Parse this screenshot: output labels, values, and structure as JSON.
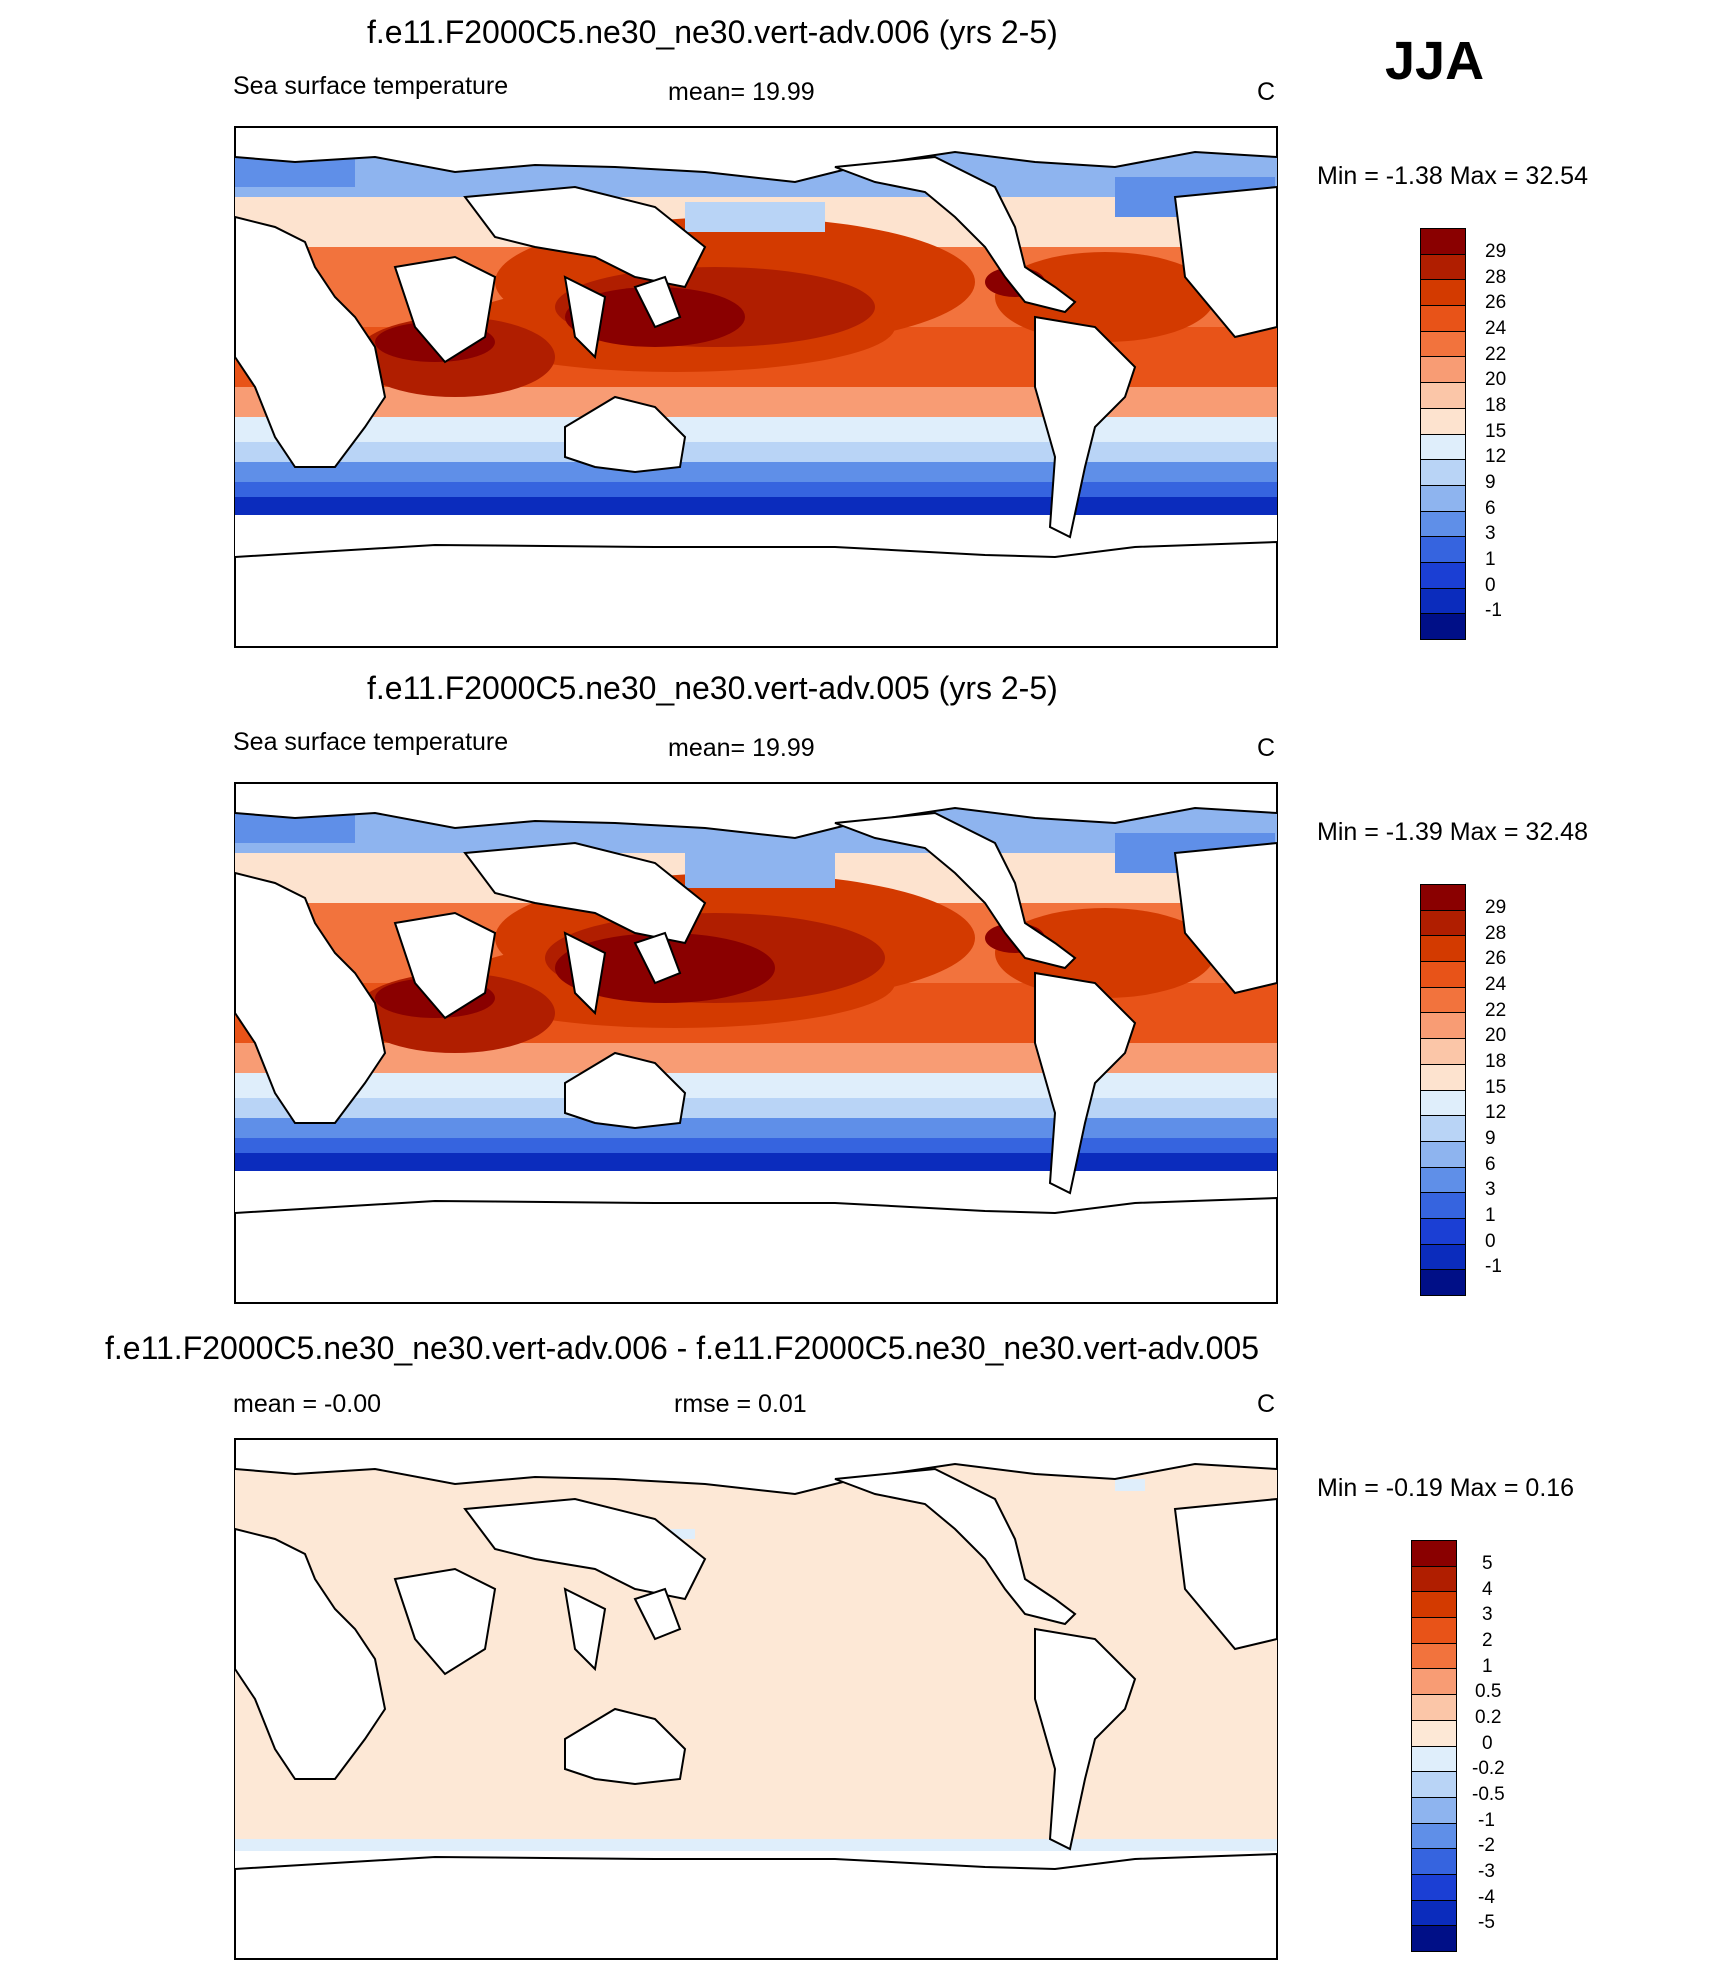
{
  "season": "JJA",
  "panels": [
    {
      "title": "f.e11.F2000C5.ne30_ne30.vert-adv.006 (yrs 2-5)",
      "left_label": "Sea surface temperature",
      "center_label": "mean=  19.99",
      "units": "C",
      "minmax": "Min =  -1.38 Max =  32.54",
      "colorbar_labels": [
        "29",
        "28",
        "26",
        "24",
        "22",
        "20",
        "18",
        "15",
        "12",
        "9",
        "6",
        "3",
        "1",
        "0",
        "-1"
      ]
    },
    {
      "title": "f.e11.F2000C5.ne30_ne30.vert-adv.005 (yrs 2-5)",
      "left_label": "Sea surface temperature",
      "center_label": "mean=  19.99",
      "units": "C",
      "minmax": "Min =  -1.39 Max =  32.48",
      "colorbar_labels": [
        "29",
        "28",
        "26",
        "24",
        "22",
        "20",
        "18",
        "15",
        "12",
        "9",
        "6",
        "3",
        "1",
        "0",
        "-1"
      ]
    },
    {
      "title": "f.e11.F2000C5.ne30_ne30.vert-adv.006 - f.e11.F2000C5.ne30_ne30.vert-adv.005",
      "left_label": "mean =  -0.00",
      "center_label": "rmse =   0.01",
      "units": "C",
      "minmax": "Min =  -0.19 Max =   0.16",
      "colorbar_labels": [
        "5",
        "4",
        "3",
        "2",
        "1",
        "0.5",
        "0.2",
        "0",
        "-0.2",
        "-0.5",
        "-1",
        "-2",
        "-3",
        "-4",
        "-5"
      ]
    }
  ],
  "colors": {
    "sst_scale": [
      "#8a0000",
      "#b01e00",
      "#d33a00",
      "#e85318",
      "#f2733d",
      "#f89c74",
      "#fbc6a8",
      "#fde3cf",
      "#dfeefb",
      "#b9d4f6",
      "#8eb4ef",
      "#5f8fe8",
      "#3664df",
      "#1b3fd4",
      "#0b2cbd",
      "#000f87"
    ],
    "diff_scale": [
      "#8a0000",
      "#b01e00",
      "#d33a00",
      "#e85318",
      "#f2733d",
      "#f89c74",
      "#fbc6a8",
      "#fde8d6",
      "#dfeefb",
      "#b9d4f6",
      "#8eb4ef",
      "#5f8fe8",
      "#3664df",
      "#1b3fd4",
      "#0b2cbd",
      "#000f87"
    ]
  }
}
